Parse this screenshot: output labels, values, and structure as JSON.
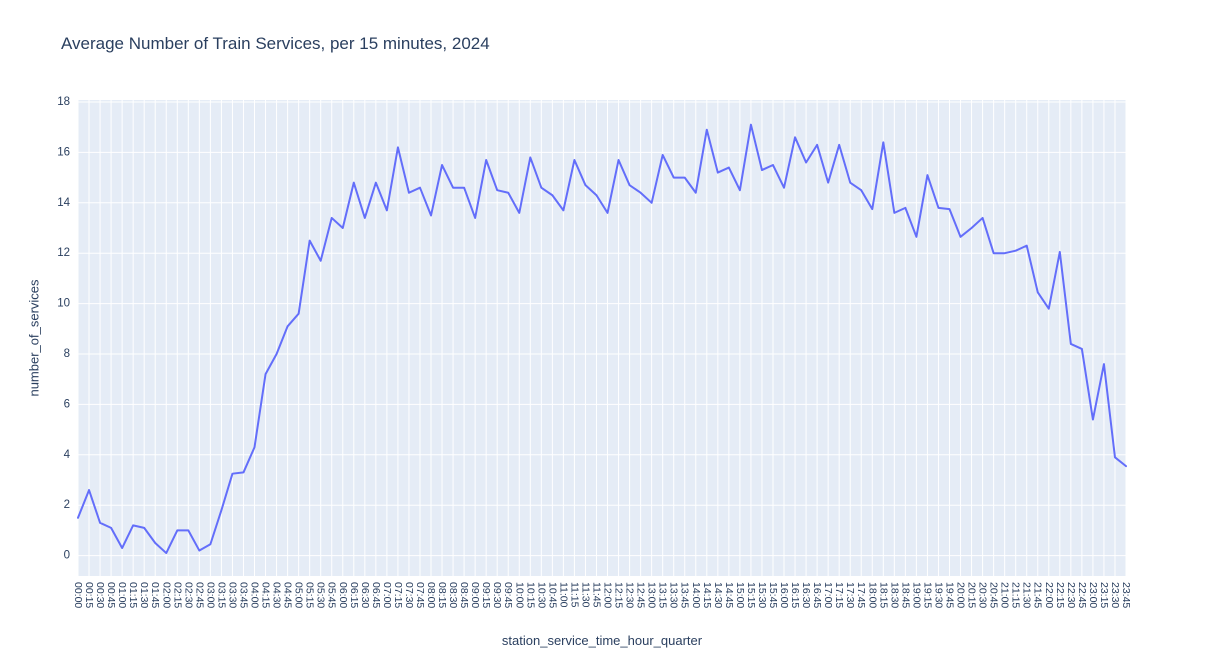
{
  "chart_data": {
    "type": "line",
    "title": "Average Number of Train Services, per 15 minutes, 2024",
    "xlabel": "station_service_time_hour_quarter",
    "ylabel": "number_of_services",
    "legend_position": "none",
    "grid": true,
    "line_color": "#636efa",
    "plot_bg_color": "#e5ecf6",
    "grid_color": "#ffffff",
    "text_color": "#2a3f5f",
    "ylim": [
      -0.81,
      18.08
    ],
    "yticks": [
      0,
      2,
      4,
      6,
      8,
      10,
      12,
      14,
      16,
      18
    ],
    "x": [
      "00:00",
      "00:15",
      "00:30",
      "00:45",
      "01:00",
      "01:15",
      "01:30",
      "01:45",
      "02:00",
      "02:15",
      "02:30",
      "02:45",
      "03:00",
      "03:15",
      "03:30",
      "03:45",
      "04:00",
      "04:15",
      "04:30",
      "04:45",
      "05:00",
      "05:15",
      "05:30",
      "05:45",
      "06:00",
      "06:15",
      "06:30",
      "06:45",
      "07:00",
      "07:15",
      "07:30",
      "07:45",
      "08:00",
      "08:15",
      "08:30",
      "08:45",
      "09:00",
      "09:15",
      "09:30",
      "09:45",
      "10:00",
      "10:15",
      "10:30",
      "10:45",
      "11:00",
      "11:15",
      "11:30",
      "11:45",
      "12:00",
      "12:15",
      "12:30",
      "12:45",
      "13:00",
      "13:15",
      "13:30",
      "13:45",
      "14:00",
      "14:15",
      "14:30",
      "14:45",
      "15:00",
      "15:15",
      "15:30",
      "15:45",
      "16:00",
      "16:15",
      "16:30",
      "16:45",
      "17:00",
      "17:15",
      "17:30",
      "17:45",
      "18:00",
      "18:15",
      "18:30",
      "18:45",
      "19:00",
      "19:15",
      "19:30",
      "19:45",
      "20:00",
      "20:15",
      "20:30",
      "20:45",
      "21:00",
      "21:15",
      "21:30",
      "21:45",
      "22:00",
      "22:15",
      "22:30",
      "22:45",
      "23:00",
      "23:15",
      "23:30",
      "23:45"
    ],
    "values": [
      1.5,
      2.6,
      1.3,
      1.1,
      0.3,
      1.2,
      1.1,
      0.5,
      0.1,
      1.0,
      1.0,
      0.2,
      0.45,
      1.8,
      3.25,
      3.3,
      4.3,
      7.2,
      8.0,
      9.1,
      9.6,
      12.5,
      11.7,
      13.4,
      13.0,
      14.8,
      13.4,
      14.8,
      13.7,
      16.2,
      14.4,
      14.6,
      13.5,
      15.5,
      14.6,
      14.6,
      13.4,
      15.7,
      14.5,
      14.4,
      13.6,
      15.8,
      14.6,
      14.3,
      13.7,
      15.7,
      14.7,
      14.3,
      13.6,
      15.7,
      14.7,
      14.4,
      14.0,
      15.9,
      15.0,
      15.0,
      14.4,
      16.9,
      15.2,
      15.4,
      14.5,
      17.1,
      15.3,
      15.5,
      14.6,
      16.6,
      15.6,
      16.3,
      14.8,
      16.3,
      14.8,
      14.5,
      13.75,
      16.4,
      13.6,
      13.8,
      12.65,
      15.1,
      13.8,
      13.75,
      12.65,
      13.0,
      13.4,
      12.0,
      12.0,
      12.1,
      12.3,
      10.45,
      9.8,
      12.05,
      8.4,
      8.2,
      5.4,
      7.6,
      3.9,
      3.55
    ]
  }
}
